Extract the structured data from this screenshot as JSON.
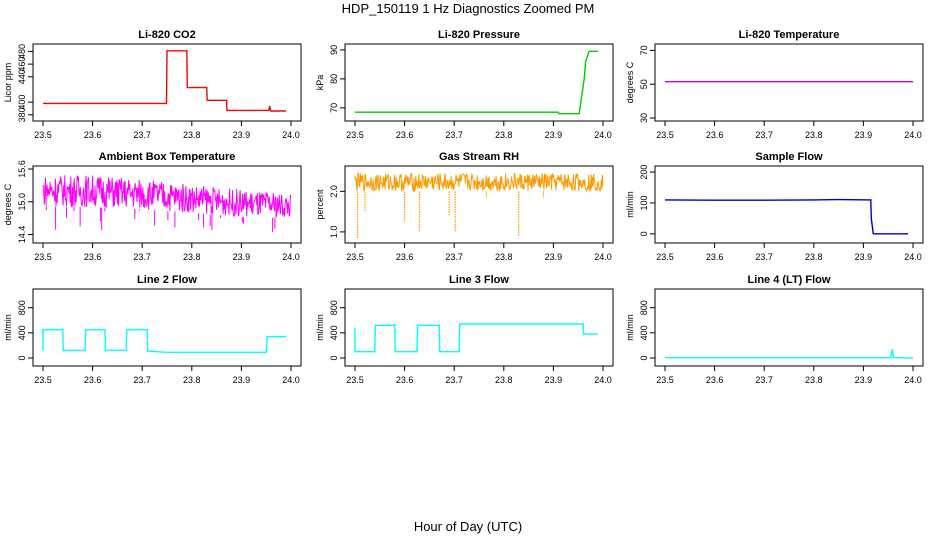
{
  "figure": {
    "title": "HDP_150119  1 Hz Diagnostics Zoomed PM",
    "xlabel": "Hour of Day (UTC)"
  },
  "chart_data": [
    {
      "type": "line",
      "title": "Li-820 CO2",
      "ylabel": "Licor ppm",
      "xlim": [
        23.5,
        24.0
      ],
      "xticks": [
        "23.5",
        "23.6",
        "23.7",
        "23.8",
        "23.9",
        "24.0"
      ],
      "ylim": [
        375,
        487
      ],
      "yticks": [
        "380",
        "400",
        "440",
        "460",
        "480"
      ],
      "color": "#ff0000",
      "series": [
        {
          "x": [
            23.5,
            23.6,
            23.7,
            23.749,
            23.75,
            23.79,
            23.791,
            23.83,
            23.831,
            23.87,
            23.871,
            23.955,
            23.957,
            23.959,
            23.961,
            23.99
          ],
          "y": [
            398,
            398,
            398,
            398,
            481,
            481,
            423,
            423,
            403,
            403,
            387,
            387,
            394,
            386,
            386,
            386
          ]
        }
      ]
    },
    {
      "type": "line",
      "title": "Li-820 Pressure",
      "ylabel": "kPa",
      "xlim": [
        23.5,
        24.0
      ],
      "xticks": [
        "23.5",
        "23.6",
        "23.7",
        "23.8",
        "23.9",
        "24.0"
      ],
      "ylim": [
        66.5,
        91
      ],
      "yticks": [
        "70",
        "80",
        "90"
      ],
      "color": "#00cc00",
      "series": [
        {
          "x": [
            23.5,
            23.7,
            23.91,
            23.911,
            23.952,
            23.962,
            23.965,
            23.972,
            23.99
          ],
          "y": [
            68.5,
            68.5,
            68.5,
            68,
            68,
            80,
            86,
            89.5,
            89.5
          ]
        }
      ]
    },
    {
      "type": "line",
      "title": "Li-820 Temperature",
      "ylabel": "degrees C",
      "xlim": [
        23.5,
        24.0
      ],
      "xticks": [
        "23.5",
        "23.6",
        "23.7",
        "23.8",
        "23.9",
        "24.0"
      ],
      "ylim": [
        30,
        72
      ],
      "yticks": [
        "30",
        "50",
        "70"
      ],
      "color": "#cc00cc",
      "series": [
        {
          "x": [
            23.5,
            24.0
          ],
          "y": [
            51.5,
            51.5
          ]
        }
      ]
    },
    {
      "type": "line",
      "title": "Ambient Box Temperature",
      "ylabel": "degrees C",
      "xlim": [
        23.5,
        24.0
      ],
      "xticks": [
        "23.5",
        "23.6",
        "23.7",
        "23.8",
        "23.9",
        "24.0"
      ],
      "ylim": [
        14.3,
        15.6
      ],
      "yticks": [
        "14.4",
        "15.0",
        "15.6"
      ],
      "color": "#ff00ff",
      "band": [
        {
          "x": 23.5,
          "lo": 14.92,
          "hi": 15.5
        },
        {
          "x": 23.6,
          "lo": 14.9,
          "hi": 15.5
        },
        {
          "x": 23.7,
          "lo": 14.86,
          "hi": 15.42
        },
        {
          "x": 23.8,
          "lo": 14.8,
          "hi": 15.32
        },
        {
          "x": 23.9,
          "lo": 14.72,
          "hi": 15.22
        },
        {
          "x": 24.0,
          "lo": 14.7,
          "hi": 15.15
        }
      ]
    },
    {
      "type": "line",
      "title": "Gas Stream RH",
      "ylabel": "percent",
      "xlim": [
        23.5,
        24.0
      ],
      "xticks": [
        "23.5",
        "23.6",
        "23.7",
        "23.8",
        "23.9",
        "24.0"
      ],
      "ylim": [
        0.8,
        2.55
      ],
      "yticks": [
        "1.0",
        "2.0"
      ],
      "color": "#ff9900",
      "band": [
        {
          "x": 23.5,
          "lo": 2.0,
          "hi": 2.45
        },
        {
          "x": 24.0,
          "lo": 2.0,
          "hi": 2.45
        }
      ],
      "dips": [
        {
          "x": 23.505,
          "y": 0.85
        },
        {
          "x": 23.52,
          "y": 1.5
        },
        {
          "x": 23.6,
          "y": 1.25
        },
        {
          "x": 23.63,
          "y": 1.0
        },
        {
          "x": 23.69,
          "y": 1.4
        },
        {
          "x": 23.702,
          "y": 1.0
        },
        {
          "x": 23.765,
          "y": 1.85
        },
        {
          "x": 23.83,
          "y": 0.9
        },
        {
          "x": 23.88,
          "y": 1.85
        }
      ]
    },
    {
      "type": "line",
      "title": "Sample Flow",
      "ylabel": "ml/min",
      "xlim": [
        23.5,
        24.0
      ],
      "xticks": [
        "23.5",
        "23.6",
        "23.7",
        "23.8",
        "23.9",
        "24.0"
      ],
      "ylim": [
        -20,
        210
      ],
      "yticks": [
        "0",
        "100",
        "200"
      ],
      "color": "#0000cc",
      "series": [
        {
          "x": [
            23.5,
            23.6,
            23.7,
            23.8,
            23.85,
            23.915,
            23.916,
            23.92,
            23.93,
            23.99
          ],
          "y": [
            110,
            109,
            109,
            110,
            111,
            110,
            50,
            0,
            0,
            0
          ]
        }
      ]
    },
    {
      "type": "line",
      "title": "Line 2 Flow",
      "ylabel": "ml/min",
      "xlim": [
        23.5,
        24.0
      ],
      "xticks": [
        "23.5",
        "23.6",
        "23.7",
        "23.8",
        "23.9",
        "24.0"
      ],
      "ylim": [
        -80,
        1050
      ],
      "yticks": [
        "0",
        "400",
        "800"
      ],
      "color": "#00ffff",
      "series": [
        {
          "x": [
            23.5,
            23.5,
            23.54,
            23.541,
            23.585,
            23.586,
            23.625,
            23.626,
            23.668,
            23.669,
            23.71,
            23.711,
            23.75,
            23.95,
            23.952,
            23.99
          ],
          "y": [
            120,
            450,
            450,
            120,
            120,
            450,
            450,
            120,
            120,
            450,
            450,
            110,
            90,
            90,
            340,
            340
          ]
        }
      ]
    },
    {
      "type": "line",
      "title": "Line 3 Flow",
      "ylabel": "ml/min",
      "xlim": [
        23.5,
        24.0
      ],
      "xticks": [
        "23.5",
        "23.6",
        "23.7",
        "23.8",
        "23.9",
        "24.0"
      ],
      "ylim": [
        -80,
        1050
      ],
      "yticks": [
        "0",
        "400",
        "800"
      ],
      "color": "#00ffff",
      "series": [
        {
          "x": [
            23.5,
            23.5,
            23.503,
            23.504,
            23.54,
            23.541,
            23.58,
            23.581,
            23.625,
            23.626,
            23.67,
            23.671,
            23.71,
            23.711,
            23.96,
            23.961,
            23.99
          ],
          "y": [
            480,
            100,
            100,
            100,
            100,
            520,
            520,
            100,
            100,
            520,
            520,
            100,
            100,
            540,
            540,
            380,
            380
          ]
        }
      ]
    },
    {
      "type": "line",
      "title": "Line 4 (LT) Flow",
      "ylabel": "ml/min",
      "xlim": [
        23.5,
        24.0
      ],
      "xticks": [
        "23.5",
        "23.6",
        "23.7",
        "23.8",
        "23.9",
        "24.0"
      ],
      "ylim": [
        -80,
        1050
      ],
      "yticks": [
        "0",
        "400",
        "800"
      ],
      "color": "#00ffff",
      "series": [
        {
          "x": [
            23.5,
            23.7,
            23.955,
            23.958,
            23.961,
            23.964,
            24.0
          ],
          "y": [
            5,
            5,
            5,
            140,
            5,
            5,
            0
          ]
        }
      ]
    }
  ]
}
